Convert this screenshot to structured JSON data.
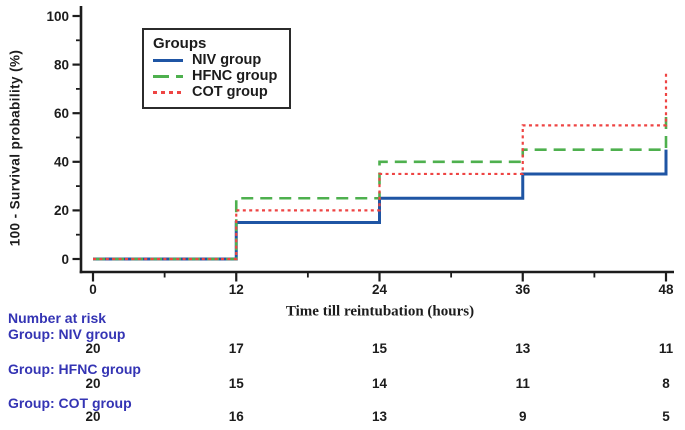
{
  "figure": {
    "background": "#ffffff",
    "axis_color": "#1c1c1c",
    "risk_text_color": "#3434b4"
  },
  "chart_data": {
    "type": "line",
    "subtype": "step-survival",
    "title": "",
    "xlabel": "Time till reintubation (hours)",
    "ylabel": "100 - Survival probability (%)",
    "xlim": [
      0,
      48
    ],
    "ylim": [
      0,
      100
    ],
    "x_ticks": [
      0,
      12,
      24,
      36,
      48
    ],
    "x_minor_ticks": [
      6,
      18,
      30,
      42
    ],
    "y_ticks": [
      0,
      20,
      40,
      60,
      80,
      100
    ],
    "y_minor_ticks": [
      10,
      30,
      50,
      70,
      90
    ],
    "grid": false,
    "legend": {
      "title": "Groups",
      "position": "top-left-inside"
    },
    "series": [
      {
        "name": "NIV group",
        "color": "#1f55a4",
        "line_style": "solid",
        "x": [
          0,
          12,
          12,
          24,
          24,
          36,
          36,
          48,
          48
        ],
        "y": [
          0,
          0,
          15,
          15,
          25,
          25,
          35,
          35,
          45
        ]
      },
      {
        "name": "HFNC group",
        "color": "#4eb04e",
        "line_style": "long-dash",
        "x": [
          0,
          12,
          12,
          24,
          24,
          36,
          36,
          48,
          48
        ],
        "y": [
          0,
          0,
          25,
          25,
          40,
          40,
          45,
          45,
          60
        ]
      },
      {
        "name": "COT group",
        "color": "#ee4443",
        "line_style": "dot",
        "x": [
          0,
          12,
          12,
          24,
          24,
          36,
          36,
          48,
          48
        ],
        "y": [
          0,
          0,
          20,
          20,
          35,
          35,
          55,
          55,
          77
        ]
      }
    ]
  },
  "risk_table": {
    "heading": "Number at risk",
    "time_points": [
      0,
      12,
      24,
      36,
      48
    ],
    "rows": [
      {
        "label": "Group: NIV group",
        "counts": [
          "20",
          "17",
          "15",
          "13",
          "11"
        ]
      },
      {
        "label": "Group: HFNC group",
        "counts": [
          "20",
          "15",
          "14",
          "11",
          "8"
        ]
      },
      {
        "label": "Group: COT group",
        "counts": [
          "20",
          "16",
          "13",
          "9",
          "5"
        ]
      }
    ]
  }
}
